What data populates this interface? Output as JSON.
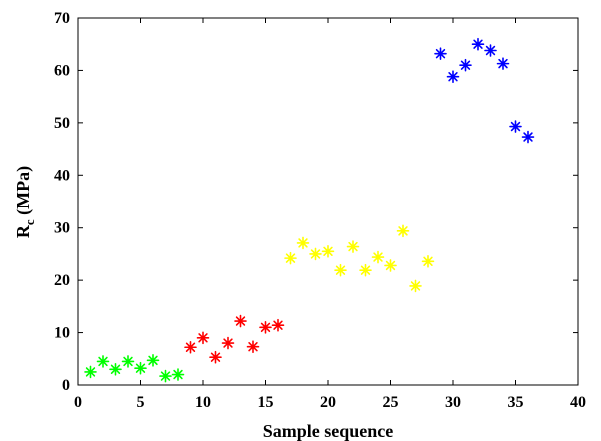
{
  "chart_data": {
    "type": "scatter",
    "title": "",
    "xlabel": "Sample sequence",
    "ylabel_main": "R",
    "ylabel_sub": "c",
    "ylabel_unit": " (MPa)",
    "xlim": [
      0,
      40
    ],
    "ylim": [
      0,
      70
    ],
    "xticks": [
      0,
      5,
      10,
      15,
      20,
      25,
      30,
      35,
      40
    ],
    "yticks": [
      0,
      10,
      20,
      30,
      40,
      50,
      60,
      70
    ],
    "grid": false,
    "legend": "none",
    "marker": "asterisk",
    "series": [
      {
        "color": "#00ff00",
        "x": [
          1,
          2,
          3,
          4,
          5,
          6,
          7,
          8
        ],
        "y": [
          2.5,
          4.5,
          3.0,
          4.5,
          3.2,
          4.7,
          1.7,
          2.0
        ]
      },
      {
        "color": "#ff0000",
        "x": [
          9,
          10,
          11,
          12,
          13,
          14,
          15,
          16
        ],
        "y": [
          7.2,
          9.0,
          5.3,
          8.0,
          12.2,
          7.3,
          11.0,
          11.4
        ]
      },
      {
        "color": "#ffff00",
        "x": [
          17,
          18,
          19,
          20,
          21,
          22,
          23,
          24,
          25,
          26,
          27,
          28
        ],
        "y": [
          24.2,
          27.1,
          25.0,
          25.5,
          21.9,
          26.4,
          21.9,
          24.4,
          22.8,
          29.4,
          18.9,
          23.6
        ]
      },
      {
        "color": "#0000ff",
        "x": [
          29,
          30,
          31,
          32,
          33,
          34,
          35,
          36
        ],
        "y": [
          63.2,
          58.8,
          61.0,
          65.0,
          63.8,
          61.3,
          49.3,
          47.3
        ]
      }
    ]
  }
}
